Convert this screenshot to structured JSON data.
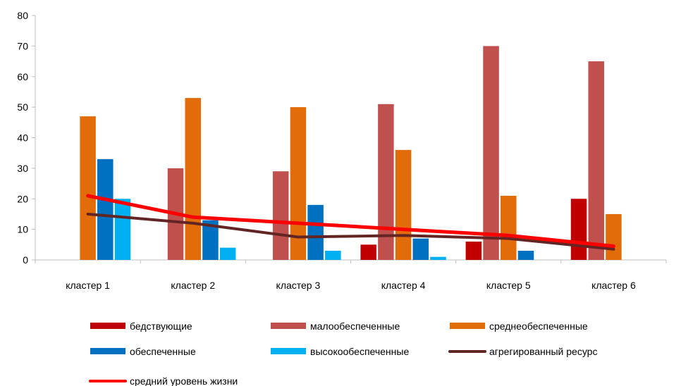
{
  "chart_data": {
    "type": "bar",
    "categories": [
      "кластер 1",
      "кластер 2",
      "кластер 3",
      "кластер 4",
      "кластер 5",
      "кластер 6"
    ],
    "ylim": [
      0,
      80
    ],
    "yticks": [
      0,
      10,
      20,
      30,
      40,
      50,
      60,
      70,
      80
    ],
    "grid": false,
    "legend_position": "bottom",
    "bar_series": [
      {
        "name": "бедствующие",
        "color": "#C00000",
        "values": [
          0,
          0,
          0,
          5,
          6,
          20
        ]
      },
      {
        "name": "малообеспеченные",
        "color": "#C0504D",
        "values": [
          0,
          30,
          29,
          51,
          70,
          65
        ]
      },
      {
        "name": "среднеобеспеченные",
        "color": "#E36C0A",
        "values": [
          47,
          53,
          50,
          36,
          21,
          15
        ]
      },
      {
        "name": "обеспеченные",
        "color": "#0070C0",
        "values": [
          33,
          13,
          18,
          7,
          3,
          0
        ]
      },
      {
        "name": "высокообеспеченные",
        "color": "#00B0F0",
        "values": [
          20,
          4,
          3,
          1,
          0,
          0
        ]
      }
    ],
    "line_series": [
      {
        "name": "агрегированный ресурс",
        "color": "#632523",
        "values": [
          15,
          12,
          7.5,
          8,
          7,
          3.5
        ]
      },
      {
        "name": "средний уровень жизни",
        "color": "#FF0000",
        "values": [
          21,
          14,
          12,
          10,
          8,
          4.5
        ]
      }
    ]
  }
}
